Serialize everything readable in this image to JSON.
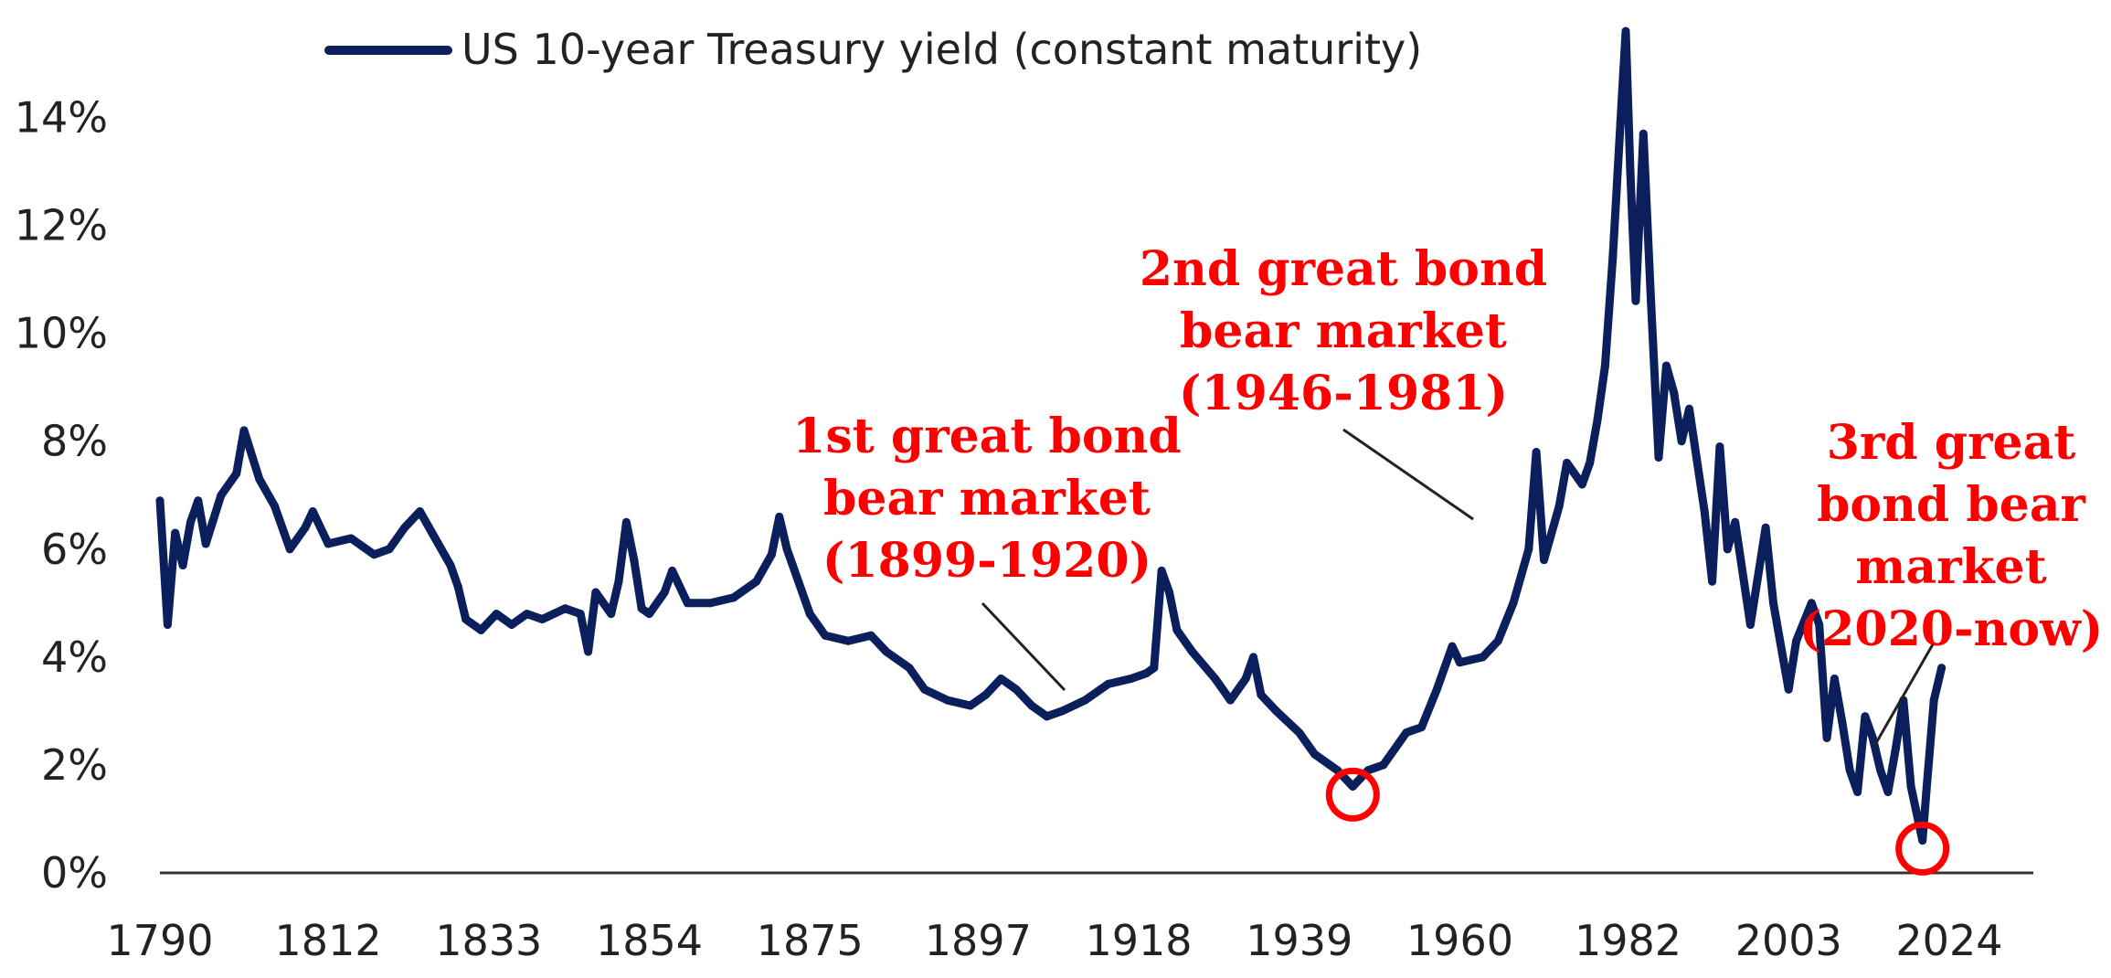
{
  "colors": {
    "series": "#0a1f5c",
    "annotation": "#ff0000",
    "axis": "#333333",
    "leader": "#222222"
  },
  "chart_data": {
    "type": "line",
    "title": "",
    "xlabel": "",
    "ylabel": "",
    "xlim": [
      1790,
      2035
    ],
    "ylim": [
      0,
      15.5
    ],
    "grid": false,
    "legend": "top-left",
    "x_ticks": [
      1790,
      1812,
      1833,
      1854,
      1875,
      1897,
      1918,
      1939,
      1960,
      1982,
      2003,
      2024
    ],
    "y_ticks": [
      0,
      2,
      4,
      6,
      8,
      10,
      12,
      14
    ],
    "y_tick_labels": [
      "0%",
      "2%",
      "4%",
      "6%",
      "8%",
      "10%",
      "12%",
      "14%"
    ],
    "series": [
      {
        "name": "US 10-year Treasury yield (constant maturity)",
        "points": [
          [
            1790,
            6.9
          ],
          [
            1791,
            4.6
          ],
          [
            1792,
            6.3
          ],
          [
            1793,
            5.7
          ],
          [
            1794,
            6.5
          ],
          [
            1795,
            6.9
          ],
          [
            1796,
            6.1
          ],
          [
            1798,
            7.0
          ],
          [
            1800,
            7.4
          ],
          [
            1801,
            8.2
          ],
          [
            1803,
            7.3
          ],
          [
            1805,
            6.8
          ],
          [
            1807,
            6.0
          ],
          [
            1809,
            6.4
          ],
          [
            1810,
            6.7
          ],
          [
            1812,
            6.1
          ],
          [
            1815,
            6.2
          ],
          [
            1818,
            5.9
          ],
          [
            1820,
            6.0
          ],
          [
            1822,
            6.4
          ],
          [
            1824,
            6.7
          ],
          [
            1826,
            6.2
          ],
          [
            1828,
            5.7
          ],
          [
            1829,
            5.3
          ],
          [
            1830,
            4.7
          ],
          [
            1832,
            4.5
          ],
          [
            1834,
            4.8
          ],
          [
            1836,
            4.6
          ],
          [
            1838,
            4.8
          ],
          [
            1840,
            4.7
          ],
          [
            1843,
            4.9
          ],
          [
            1845,
            4.8
          ],
          [
            1846,
            4.1
          ],
          [
            1847,
            5.2
          ],
          [
            1849,
            4.8
          ],
          [
            1850,
            5.4
          ],
          [
            1851,
            6.5
          ],
          [
            1852,
            5.8
          ],
          [
            1853,
            4.9
          ],
          [
            1854,
            4.8
          ],
          [
            1856,
            5.2
          ],
          [
            1857,
            5.6
          ],
          [
            1859,
            5.0
          ],
          [
            1862,
            5.0
          ],
          [
            1865,
            5.1
          ],
          [
            1868,
            5.4
          ],
          [
            1870,
            5.9
          ],
          [
            1871,
            6.6
          ],
          [
            1872,
            6.0
          ],
          [
            1873,
            5.6
          ],
          [
            1875,
            4.8
          ],
          [
            1877,
            4.4
          ],
          [
            1880,
            4.3
          ],
          [
            1883,
            4.4
          ],
          [
            1885,
            4.1
          ],
          [
            1888,
            3.8
          ],
          [
            1890,
            3.4
          ],
          [
            1893,
            3.2
          ],
          [
            1896,
            3.1
          ],
          [
            1898,
            3.3
          ],
          [
            1900,
            3.6
          ],
          [
            1902,
            3.4
          ],
          [
            1904,
            3.1
          ],
          [
            1906,
            2.9
          ],
          [
            1908,
            3.0
          ],
          [
            1911,
            3.2
          ],
          [
            1914,
            3.5
          ],
          [
            1917,
            3.6
          ],
          [
            1919,
            3.7
          ],
          [
            1920,
            3.8
          ],
          [
            1921,
            5.6
          ],
          [
            1922,
            5.2
          ],
          [
            1923,
            4.5
          ],
          [
            1925,
            4.1
          ],
          [
            1928,
            3.6
          ],
          [
            1930,
            3.2
          ],
          [
            1932,
            3.6
          ],
          [
            1933,
            4.0
          ],
          [
            1934,
            3.3
          ],
          [
            1936,
            3.0
          ],
          [
            1939,
            2.6
          ],
          [
            1941,
            2.2
          ],
          [
            1943,
            2.0
          ],
          [
            1944,
            1.9
          ],
          [
            1946,
            1.6
          ],
          [
            1948,
            1.9
          ],
          [
            1950,
            2.0
          ],
          [
            1953,
            2.6
          ],
          [
            1955,
            2.7
          ],
          [
            1957,
            3.4
          ],
          [
            1959,
            4.2
          ],
          [
            1960,
            3.9
          ],
          [
            1963,
            4.0
          ],
          [
            1965,
            4.3
          ],
          [
            1967,
            5.0
          ],
          [
            1969,
            6.0
          ],
          [
            1970,
            7.8
          ],
          [
            1971,
            5.8
          ],
          [
            1973,
            6.8
          ],
          [
            1974,
            7.6
          ],
          [
            1976,
            7.2
          ],
          [
            1977,
            7.6
          ],
          [
            1978,
            8.4
          ],
          [
            1979,
            9.4
          ],
          [
            1980,
            11.4
          ],
          [
            1981,
            13.9
          ],
          [
            1981.7,
            15.6
          ],
          [
            1982.3,
            13.0
          ],
          [
            1983,
            10.6
          ],
          [
            1984,
            13.7
          ],
          [
            1985,
            10.6
          ],
          [
            1986,
            7.7
          ],
          [
            1987,
            9.4
          ],
          [
            1988,
            8.9
          ],
          [
            1989,
            8.0
          ],
          [
            1990,
            8.6
          ],
          [
            1992,
            6.7
          ],
          [
            1993,
            5.4
          ],
          [
            1994,
            7.9
          ],
          [
            1995,
            6.0
          ],
          [
            1996,
            6.5
          ],
          [
            1998,
            4.6
          ],
          [
            2000,
            6.4
          ],
          [
            2001,
            5.0
          ],
          [
            2003,
            3.4
          ],
          [
            2004,
            4.3
          ],
          [
            2006,
            5.0
          ],
          [
            2007,
            4.6
          ],
          [
            2008,
            2.5
          ],
          [
            2009,
            3.6
          ],
          [
            2010,
            2.8
          ],
          [
            2011,
            1.9
          ],
          [
            2012,
            1.5
          ],
          [
            2013,
            2.9
          ],
          [
            2014,
            2.5
          ],
          [
            2015,
            1.9
          ],
          [
            2016,
            1.5
          ],
          [
            2017,
            2.3
          ],
          [
            2018,
            3.2
          ],
          [
            2019,
            1.6
          ],
          [
            2020.5,
            0.6
          ],
          [
            2021,
            1.5
          ],
          [
            2022,
            3.2
          ],
          [
            2023,
            3.8
          ]
        ]
      }
    ],
    "annotations": [
      {
        "lines": [
          "1st great bond",
          "bear market",
          "(1899-1920)"
        ]
      },
      {
        "lines": [
          "2nd great bond",
          "bear market",
          "(1946-1981)"
        ]
      },
      {
        "lines": [
          "3rd great",
          "bond bear",
          "market",
          "(2020-now)"
        ]
      }
    ],
    "markers": [
      {
        "shape": "circle",
        "x": 1946,
        "y": 1.45
      },
      {
        "shape": "circle",
        "x": 2020.5,
        "y": 0.45
      }
    ]
  }
}
